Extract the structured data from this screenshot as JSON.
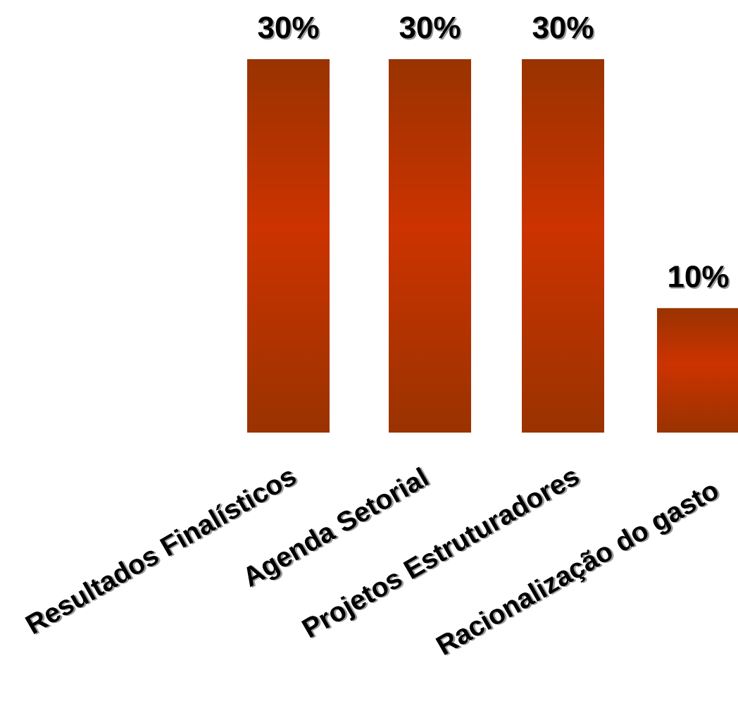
{
  "chart_data": {
    "type": "bar",
    "categories": [
      "Resultados Finalísticos",
      "Agenda Setorial",
      "Projetos Estruturadores",
      "Racionalização do gasto"
    ],
    "values": [
      30,
      30,
      30,
      10
    ],
    "value_labels": [
      "30%",
      "30%",
      "30%",
      "10%"
    ],
    "unit": "%",
    "ylim": [
      0,
      30
    ],
    "grid": false,
    "legend": "none",
    "colors": {
      "bar_edge": "#993300",
      "bar_center": "#CC3300",
      "label": "#000000",
      "label_shadow": "#9A9A9A"
    }
  }
}
